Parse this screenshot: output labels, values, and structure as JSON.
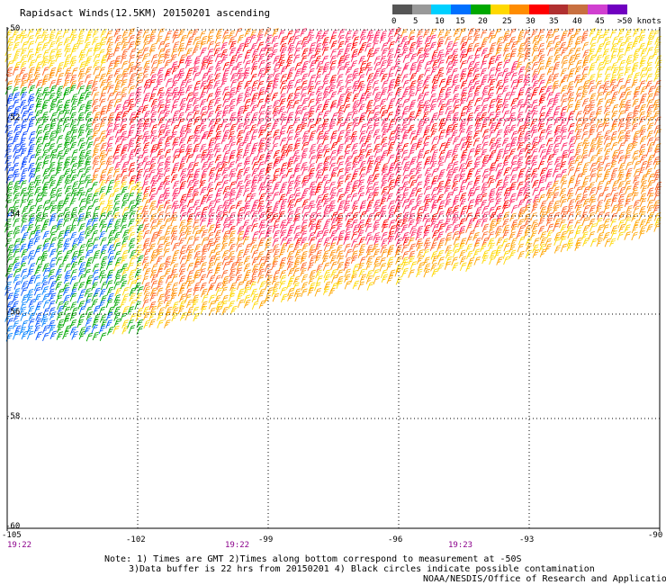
{
  "header": {
    "title": "Rapidsact Winds(12.5KM) 20150201 ascending"
  },
  "legend": {
    "ticks": [
      "0",
      "5",
      "10",
      "15",
      "20",
      "25",
      "30",
      "35",
      "40",
      "45",
      ">50 knots"
    ],
    "colors": [
      "#555555",
      "#999999",
      "#00d0ff",
      "#0070ff",
      "#00a800",
      "#ffd800",
      "#ff8c00",
      "#ff0000",
      "#b03030",
      "#c87040",
      "#d040d0",
      "#7000c0"
    ]
  },
  "chart_data": {
    "type": "wind-barb-map",
    "lon_labels": [
      "-105",
      "-102",
      "-99",
      "-96",
      "-93",
      "-90"
    ],
    "lat_labels": [
      "-50",
      "-52",
      "-54",
      "-56",
      "-58",
      "-60"
    ],
    "time_labels": [
      "19:22",
      "19:22",
      "19:23"
    ],
    "grid": true
  },
  "notes": {
    "line1": "Note: 1) Times are GMT 2)Times along bottom correspond to measurement at -50S",
    "line2": "3)Data buffer is 22 hrs from 20150201 4) Black circles indicate possible contamination",
    "line3": "NOAA/NESDIS/Office of Research and Applications"
  }
}
